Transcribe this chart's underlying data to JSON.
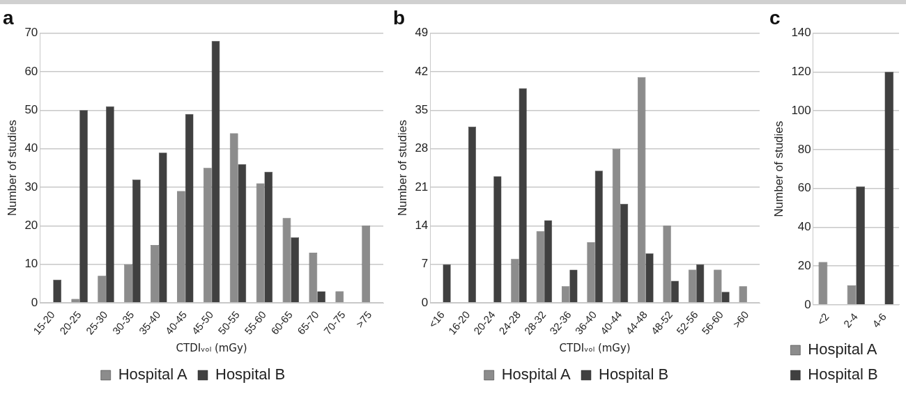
{
  "chart_data": [
    {
      "type": "bar",
      "title": "a",
      "xlabel": "CTDIᵥₒₗ (mGy)",
      "ylabel": "Number of studies",
      "categories": [
        "15-20",
        "20-25",
        "25-30",
        "30-35",
        "35-40",
        "40-45",
        "45-50",
        "50-55",
        "55-60",
        "60-65",
        "65-70",
        "70-75",
        ">75"
      ],
      "series": [
        {
          "name": "Hospital A",
          "color": "#8c8c8c",
          "values": [
            null,
            1,
            7,
            10,
            15,
            29,
            35,
            44,
            31,
            22,
            13,
            3,
            20
          ]
        },
        {
          "name": "Hospital B",
          "color": "#404040",
          "values": [
            6,
            50,
            51,
            32,
            39,
            49,
            68,
            36,
            34,
            17,
            3,
            null,
            null
          ]
        }
      ],
      "ylim": [
        0,
        70
      ],
      "yticks": [
        0,
        10,
        20,
        30,
        40,
        50,
        60,
        70
      ],
      "grid": "y",
      "legend": "bottom"
    },
    {
      "type": "bar",
      "title": "b",
      "xlabel": "CTDIᵥₒₗ (mGy)",
      "ylabel": "Number of studies",
      "categories": [
        "<16",
        "16-20",
        "20-24",
        "24-28",
        "28-32",
        "32-36",
        "36-40",
        "40-44",
        "44-48",
        "48-52",
        "52-56",
        "56-60",
        ">60"
      ],
      "series": [
        {
          "name": "Hospital A",
          "color": "#8c8c8c",
          "values": [
            null,
            null,
            null,
            8,
            13,
            3,
            11,
            28,
            41,
            14,
            6,
            6,
            3
          ]
        },
        {
          "name": "Hospital B",
          "color": "#404040",
          "values": [
            7,
            32,
            23,
            39,
            15,
            6,
            24,
            18,
            9,
            4,
            7,
            2,
            null
          ]
        }
      ],
      "ylim": [
        0,
        49
      ],
      "yticks": [
        0,
        7,
        14,
        21,
        28,
        35,
        42,
        49
      ],
      "grid": "y",
      "legend": "bottom"
    },
    {
      "type": "bar",
      "title": "c",
      "ylabel": "Number of studies",
      "categories": [
        "<2",
        "2-4",
        "4-6"
      ],
      "series": [
        {
          "name": "Hospital A",
          "color": "#8c8c8c",
          "values": [
            22,
            10,
            null
          ]
        },
        {
          "name": "Hospital B",
          "color": "#404040",
          "values": [
            null,
            61,
            120
          ]
        }
      ],
      "ylim": [
        0,
        140
      ],
      "yticks": [
        0,
        20,
        40,
        60,
        80,
        100,
        120,
        140
      ],
      "grid": "y",
      "legend": "bottom"
    }
  ]
}
